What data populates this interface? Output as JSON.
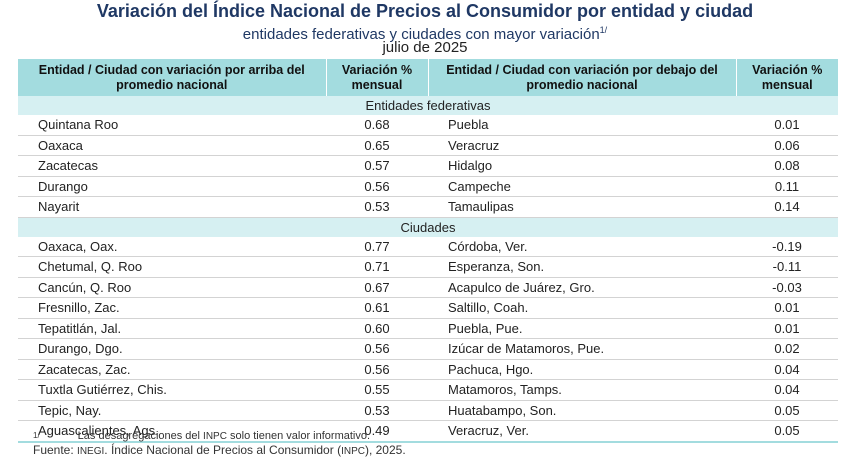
{
  "title": "Variación del Índice Nacional de Precios al Consumidor por entidad y ciudad",
  "subtitle": "entidades federativas y ciudades con mayor variación",
  "subtitle_mark": "1/",
  "date": "julio de 2025",
  "headers": {
    "left_name": "Entidad / Ciudad con variación por arriba del promedio nacional",
    "left_value": "Variación % mensual",
    "right_name": "Entidad / Ciudad con variación por debajo del promedio nacional",
    "right_value": "Variación % mensual"
  },
  "sections": [
    {
      "label": "Entidades federativas",
      "rows": [
        {
          "above": "Quintana Roo",
          "above_val": "0.68",
          "below": "Puebla",
          "below_val": "0.01"
        },
        {
          "above": "Oaxaca",
          "above_val": "0.65",
          "below": "Veracruz",
          "below_val": "0.06"
        },
        {
          "above": "Zacatecas",
          "above_val": "0.57",
          "below": "Hidalgo",
          "below_val": "0.08"
        },
        {
          "above": "Durango",
          "above_val": "0.56",
          "below": "Campeche",
          "below_val": "0.11"
        },
        {
          "above": "Nayarit",
          "above_val": "0.53",
          "below": "Tamaulipas",
          "below_val": "0.14"
        }
      ]
    },
    {
      "label": "Ciudades",
      "rows": [
        {
          "above": "Oaxaca, Oax.",
          "above_val": "0.77",
          "below": "Córdoba, Ver.",
          "below_val": "-0.19"
        },
        {
          "above": "Chetumal, Q. Roo",
          "above_val": "0.71",
          "below": "Esperanza, Son.",
          "below_val": "-0.11"
        },
        {
          "above": "Cancún, Q. Roo",
          "above_val": "0.67",
          "below": "Acapulco de Juárez, Gro.",
          "below_val": "-0.03"
        },
        {
          "above": "Fresnillo, Zac.",
          "above_val": "0.61",
          "below": "Saltillo, Coah.",
          "below_val": "0.01"
        },
        {
          "above": "Tepatitlán, Jal.",
          "above_val": "0.60",
          "below": "Puebla, Pue.",
          "below_val": "0.01"
        },
        {
          "above": "Durango, Dgo.",
          "above_val": "0.56",
          "below": "Izúcar de Matamoros, Pue.",
          "below_val": "0.02"
        },
        {
          "above": "Zacatecas, Zac.",
          "above_val": "0.56",
          "below": "Pachuca, Hgo.",
          "below_val": "0.04"
        },
        {
          "above": "Tuxtla Gutiérrez, Chis.",
          "above_val": "0.55",
          "below": "Matamoros, Tamps.",
          "below_val": "0.04"
        },
        {
          "above": "Tepic, Nay.",
          "above_val": "0.53",
          "below": "Huatabampo, Son.",
          "below_val": "0.05"
        },
        {
          "above": "Aguascalientes, Ags.",
          "above_val": "0.49",
          "below": "Veracruz, Ver.",
          "below_val": "0.05"
        }
      ]
    }
  ],
  "note": {
    "mark": "1/",
    "text_before": "Las desagregaciones del",
    "abbr": "INPC",
    "text_after": "solo tienen valor informativo."
  },
  "source": {
    "label": "Fuente:",
    "org": "INEGI",
    "text": ". Índice Nacional de Precios al Consumidor (",
    "abbr": "INPC",
    "end": "), 2025."
  }
}
